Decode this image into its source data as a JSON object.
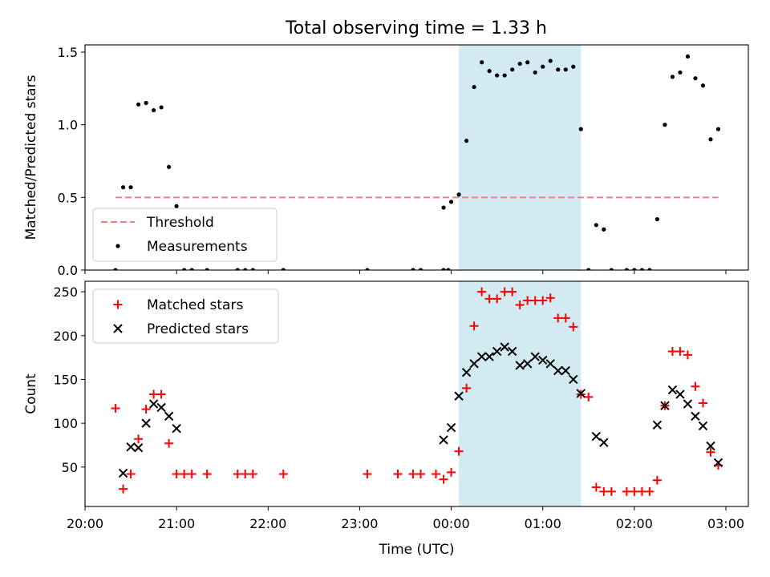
{
  "figure": {
    "title": "Total observing time = 1.33 h"
  },
  "colors": {
    "threshold": "#f08080",
    "measurement": "#000000",
    "matched": "#ff0000",
    "predicted": "#000000",
    "observing_window": "#add8e6"
  },
  "chart_data": [
    {
      "type": "scatter",
      "panel": "top",
      "title": "Total observing time = 1.33 h",
      "xlabel": "",
      "ylabel": "Matched/Predicted stars",
      "xlim": [
        "20:00",
        "03:15"
      ],
      "ylim": [
        0,
        1.55
      ],
      "yticks": [
        0.0,
        0.5,
        1.0,
        1.5
      ],
      "ytick_labels": [
        "0.0",
        "0.5",
        "1.0",
        "1.5"
      ],
      "legend_position": "lower-left",
      "shaded_interval": [
        "00:05",
        "01:25"
      ],
      "threshold": {
        "name": "Threshold",
        "y": 0.5,
        "x_start": "20:20",
        "x_end": "02:55"
      },
      "series": [
        {
          "name": "Measurements",
          "marker": "dot",
          "points": [
            [
              "20:20",
              0.0
            ],
            [
              "20:25",
              0.57
            ],
            [
              "20:30",
              0.57
            ],
            [
              "20:35",
              1.14
            ],
            [
              "20:40",
              1.15
            ],
            [
              "20:45",
              1.1
            ],
            [
              "20:50",
              1.12
            ],
            [
              "20:55",
              0.71
            ],
            [
              "21:00",
              0.44
            ],
            [
              "21:05",
              0.0
            ],
            [
              "21:10",
              0.0
            ],
            [
              "21:20",
              0.0
            ],
            [
              "21:40",
              0.0
            ],
            [
              "21:45",
              0.0
            ],
            [
              "21:50",
              0.0
            ],
            [
              "22:10",
              0.0
            ],
            [
              "23:05",
              0.0
            ],
            [
              "23:35",
              0.0
            ],
            [
              "23:40",
              0.0
            ],
            [
              "23:55",
              0.0
            ],
            [
              "23:58",
              0.0
            ],
            [
              "23:55",
              0.43
            ],
            [
              "00:00",
              0.47
            ],
            [
              "00:05",
              0.52
            ],
            [
              "00:10",
              0.89
            ],
            [
              "00:15",
              1.26
            ],
            [
              "00:20",
              1.43
            ],
            [
              "00:25",
              1.37
            ],
            [
              "00:30",
              1.34
            ],
            [
              "00:35",
              1.34
            ],
            [
              "00:40",
              1.38
            ],
            [
              "00:45",
              1.42
            ],
            [
              "00:50",
              1.43
            ],
            [
              "00:55",
              1.36
            ],
            [
              "01:00",
              1.4
            ],
            [
              "01:05",
              1.44
            ],
            [
              "01:10",
              1.38
            ],
            [
              "01:15",
              1.38
            ],
            [
              "01:20",
              1.4
            ],
            [
              "01:25",
              0.97
            ],
            [
              "01:30",
              0.0
            ],
            [
              "01:35",
              0.31
            ],
            [
              "01:40",
              0.28
            ],
            [
              "01:45",
              0.0
            ],
            [
              "01:55",
              0.0
            ],
            [
              "02:00",
              0.0
            ],
            [
              "02:05",
              0.0
            ],
            [
              "02:10",
              0.0
            ],
            [
              "02:15",
              0.35
            ],
            [
              "02:20",
              1.0
            ],
            [
              "02:25",
              1.33
            ],
            [
              "02:30",
              1.36
            ],
            [
              "02:35",
              1.47
            ],
            [
              "02:40",
              1.32
            ],
            [
              "02:45",
              1.27
            ],
            [
              "02:50",
              0.9
            ],
            [
              "02:55",
              0.97
            ]
          ]
        }
      ]
    },
    {
      "type": "scatter",
      "panel": "bottom",
      "xlabel": "Time (UTC)",
      "ylabel": "Count",
      "xlim": [
        "20:00",
        "03:15"
      ],
      "ylim": [
        5,
        262
      ],
      "xticks": [
        "20:00",
        "21:00",
        "22:00",
        "23:00",
        "00:00",
        "01:00",
        "02:00",
        "03:00"
      ],
      "yticks": [
        50,
        100,
        150,
        200,
        250
      ],
      "ytick_labels": [
        "50",
        "100",
        "150",
        "200",
        "250"
      ],
      "legend_position": "upper-left",
      "shaded_interval": [
        "00:05",
        "01:25"
      ],
      "series": [
        {
          "name": "Matched stars",
          "marker": "plus",
          "points": [
            [
              "20:20",
              117
            ],
            [
              "20:25",
              25
            ],
            [
              "20:30",
              42
            ],
            [
              "20:35",
              82
            ],
            [
              "20:40",
              116
            ],
            [
              "20:45",
              133
            ],
            [
              "20:50",
              133
            ],
            [
              "20:55",
              77
            ],
            [
              "21:00",
              42
            ],
            [
              "21:05",
              42
            ],
            [
              "21:10",
              42
            ],
            [
              "21:20",
              42
            ],
            [
              "21:40",
              42
            ],
            [
              "21:45",
              42
            ],
            [
              "21:50",
              42
            ],
            [
              "22:10",
              42
            ],
            [
              "23:05",
              42
            ],
            [
              "23:25",
              42
            ],
            [
              "23:35",
              42
            ],
            [
              "23:40",
              42
            ],
            [
              "23:50",
              42
            ],
            [
              "23:55",
              36
            ],
            [
              "00:00",
              44
            ],
            [
              "00:05",
              68
            ],
            [
              "00:10",
              140
            ],
            [
              "00:15",
              211
            ],
            [
              "00:20",
              250
            ],
            [
              "00:25",
              242
            ],
            [
              "00:30",
              242
            ],
            [
              "00:35",
              250
            ],
            [
              "00:40",
              250
            ],
            [
              "00:45",
              235
            ],
            [
              "00:50",
              240
            ],
            [
              "00:55",
              240
            ],
            [
              "01:00",
              240
            ],
            [
              "01:05",
              243
            ],
            [
              "01:10",
              220
            ],
            [
              "01:15",
              220
            ],
            [
              "01:20",
              210
            ],
            [
              "01:25",
              133
            ],
            [
              "01:30",
              130
            ],
            [
              "01:35",
              27
            ],
            [
              "01:40",
              22
            ],
            [
              "01:45",
              22
            ],
            [
              "01:55",
              22
            ],
            [
              "02:00",
              22
            ],
            [
              "02:05",
              22
            ],
            [
              "02:10",
              22
            ],
            [
              "02:15",
              35
            ],
            [
              "02:20",
              120
            ],
            [
              "02:25",
              182
            ],
            [
              "02:30",
              182
            ],
            [
              "02:35",
              178
            ],
            [
              "02:40",
              142
            ],
            [
              "02:45",
              123
            ],
            [
              "02:50",
              67
            ],
            [
              "02:55",
              52
            ]
          ]
        },
        {
          "name": "Predicted stars",
          "marker": "x",
          "points": [
            [
              "20:25",
              43
            ],
            [
              "20:30",
              73
            ],
            [
              "20:35",
              72
            ],
            [
              "20:40",
              100
            ],
            [
              "20:45",
              122
            ],
            [
              "20:50",
              118
            ],
            [
              "20:55",
              108
            ],
            [
              "21:00",
              94
            ],
            [
              "23:55",
              81
            ],
            [
              "00:00",
              95
            ],
            [
              "00:05",
              131
            ],
            [
              "00:10",
              158
            ],
            [
              "00:15",
              168
            ],
            [
              "00:20",
              176
            ],
            [
              "00:25",
              176
            ],
            [
              "00:30",
              182
            ],
            [
              "00:35",
              187
            ],
            [
              "00:40",
              182
            ],
            [
              "00:45",
              166
            ],
            [
              "00:50",
              168
            ],
            [
              "00:55",
              176
            ],
            [
              "01:00",
              172
            ],
            [
              "01:05",
              168
            ],
            [
              "01:10",
              160
            ],
            [
              "01:15",
              160
            ],
            [
              "01:20",
              150
            ],
            [
              "01:25",
              134
            ],
            [
              "01:35",
              85
            ],
            [
              "01:40",
              78
            ],
            [
              "02:15",
              98
            ],
            [
              "02:20",
              120
            ],
            [
              "02:25",
              138
            ],
            [
              "02:30",
              133
            ],
            [
              "02:35",
              122
            ],
            [
              "02:40",
              108
            ],
            [
              "02:45",
              97
            ],
            [
              "02:50",
              74
            ],
            [
              "02:55",
              55
            ]
          ]
        }
      ]
    }
  ]
}
